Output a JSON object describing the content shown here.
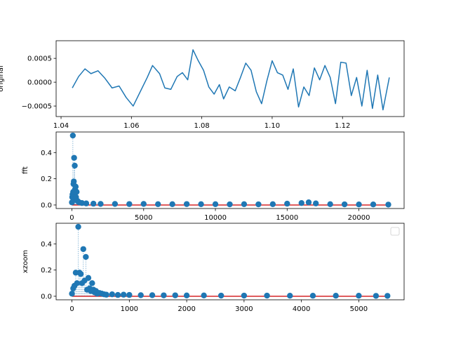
{
  "chart_data": [
    {
      "type": "line",
      "ylabel": "original",
      "xlim": [
        1.0386,
        1.1375
      ],
      "ylim": [
        -0.00072,
        0.00087
      ],
      "xticks": [
        1.04,
        1.06,
        1.08,
        1.1,
        1.12
      ],
      "xtick_labels": [
        "1.04",
        "1.06",
        "1.08",
        "1.10",
        "1.12"
      ],
      "yticks": [
        -0.0005,
        0.0,
        0.0005
      ],
      "ytick_labels": [
        "−0.0005",
        "0.0000",
        "0.0005"
      ],
      "color": "#1f77b4",
      "series": [
        {
          "x": [
            1.0432,
            1.045,
            1.0468,
            1.0485,
            1.0505,
            1.0525,
            1.0545,
            1.0565,
            1.0585,
            1.0605,
            1.0625,
            1.0645,
            1.066,
            1.068,
            1.0695,
            1.0712,
            1.073,
            1.0745,
            1.076,
            1.0775,
            1.079,
            1.0805,
            1.082,
            1.0835,
            1.085,
            1.0862,
            1.0878,
            1.0895,
            1.091,
            1.0925,
            1.094,
            1.0955,
            1.097,
            1.0985,
            1.1,
            1.1015,
            1.103,
            1.1045,
            1.106,
            1.1075,
            1.109,
            1.1105,
            1.112,
            1.1135,
            1.115,
            1.1165,
            1.118,
            1.1195,
            1.121,
            1.1225,
            1.124,
            1.1255,
            1.127,
            1.1285,
            1.13,
            1.1315,
            1.1333
          ],
          "values": [
            -0.00012,
            0.00012,
            0.00028,
            0.00018,
            0.00024,
            8e-05,
            -0.00012,
            -8e-05,
            -0.00032,
            -0.0005,
            -0.0002,
            0.0001,
            0.00035,
            0.00018,
            -0.00012,
            -0.00015,
            0.00012,
            0.0002,
            5e-05,
            0.00068,
            0.00045,
            0.00025,
            -0.0001,
            -0.00025,
            -5e-05,
            -0.00035,
            -0.0001,
            -0.00018,
            0.0001,
            0.0004,
            0.00025,
            -0.0002,
            -0.00045,
            3e-05,
            0.00045,
            0.0002,
            0.00015,
            -0.00015,
            0.00028,
            -0.00052,
            -0.0001,
            -0.00028,
            0.0003,
            5e-05,
            0.00035,
            0.0001,
            -0.00045,
            0.00042,
            0.0004,
            -0.00028,
            0.0001,
            -0.0005,
            0.00025,
            -0.00055,
            0.00015,
            -0.00058,
            0.0001
          ]
        }
      ]
    },
    {
      "type": "scatter",
      "ylabel": "fft",
      "xlim": [
        -1100,
        23150
      ],
      "ylim": [
        -0.027,
        0.557
      ],
      "xticks": [
        0,
        5000,
        10000,
        15000,
        20000
      ],
      "xtick_labels": [
        "0",
        "5000",
        "10000",
        "15000",
        "20000"
      ],
      "yticks": [
        0.0,
        0.2,
        0.4
      ],
      "ytick_labels": [
        "0.0",
        "0.2",
        "0.4"
      ],
      "color": "#1f77b4",
      "baseline_color": "#d62728",
      "series": [
        {
          "x": [
            0,
            22,
            44,
            66,
            88,
            110,
            132,
            154,
            176,
            198,
            220,
            242,
            264,
            286,
            308,
            330,
            400,
            500,
            700,
            1000,
            1500,
            2000,
            3000,
            4000,
            5000,
            6000,
            7000,
            8000,
            9000,
            10000,
            11000,
            12000,
            13000,
            14000,
            15000,
            16000,
            16500,
            17000,
            18000,
            19000,
            20000,
            21000,
            22050
          ],
          "values": [
            0.02,
            0.06,
            0.08,
            0.53,
            0.1,
            0.16,
            0.18,
            0.36,
            0.1,
            0.3,
            0.12,
            0.05,
            0.14,
            0.06,
            0.04,
            0.1,
            0.03,
            0.02,
            0.015,
            0.012,
            0.01,
            0.008,
            0.008,
            0.007,
            0.008,
            0.006,
            0.006,
            0.007,
            0.006,
            0.006,
            0.005,
            0.006,
            0.005,
            0.006,
            0.01,
            0.015,
            0.02,
            0.012,
            0.006,
            0.005,
            0.004,
            0.004,
            0.003
          ]
        }
      ]
    },
    {
      "type": "scatter",
      "ylabel": "xzoom",
      "xlim": [
        -276,
        5790
      ],
      "ylim": [
        -0.027,
        0.557
      ],
      "xticks": [
        0,
        1000,
        2000,
        3000,
        4000,
        5000
      ],
      "xtick_labels": [
        "0",
        "1000",
        "2000",
        "3000",
        "4000",
        "5000"
      ],
      "yticks": [
        0.0,
        0.2,
        0.4
      ],
      "ytick_labels": [
        "0.0",
        "0.2",
        "0.4"
      ],
      "legend": "top-right (empty)",
      "color": "#1f77b4",
      "baseline_color": "#d62728",
      "series": [
        {
          "x": [
            0,
            22,
            44,
            66,
            88,
            110,
            132,
            154,
            176,
            198,
            220,
            242,
            264,
            286,
            308,
            330,
            352,
            374,
            396,
            418,
            440,
            480,
            520,
            560,
            600,
            700,
            800,
            900,
            1000,
            1200,
            1400,
            1600,
            1800,
            2000,
            2300,
            2600,
            3000,
            3400,
            3800,
            4200,
            4600,
            5000,
            5300,
            5500
          ],
          "values": [
            0.02,
            0.06,
            0.08,
            0.18,
            0.1,
            0.53,
            0.18,
            0.17,
            0.1,
            0.36,
            0.12,
            0.3,
            0.05,
            0.14,
            0.06,
            0.04,
            0.1,
            0.05,
            0.03,
            0.04,
            0.02,
            0.025,
            0.02,
            0.015,
            0.012,
            0.015,
            0.01,
            0.012,
            0.01,
            0.008,
            0.008,
            0.007,
            0.007,
            0.006,
            0.006,
            0.005,
            0.005,
            0.005,
            0.004,
            0.004,
            0.004,
            0.004,
            0.003,
            0.003
          ]
        }
      ]
    }
  ]
}
